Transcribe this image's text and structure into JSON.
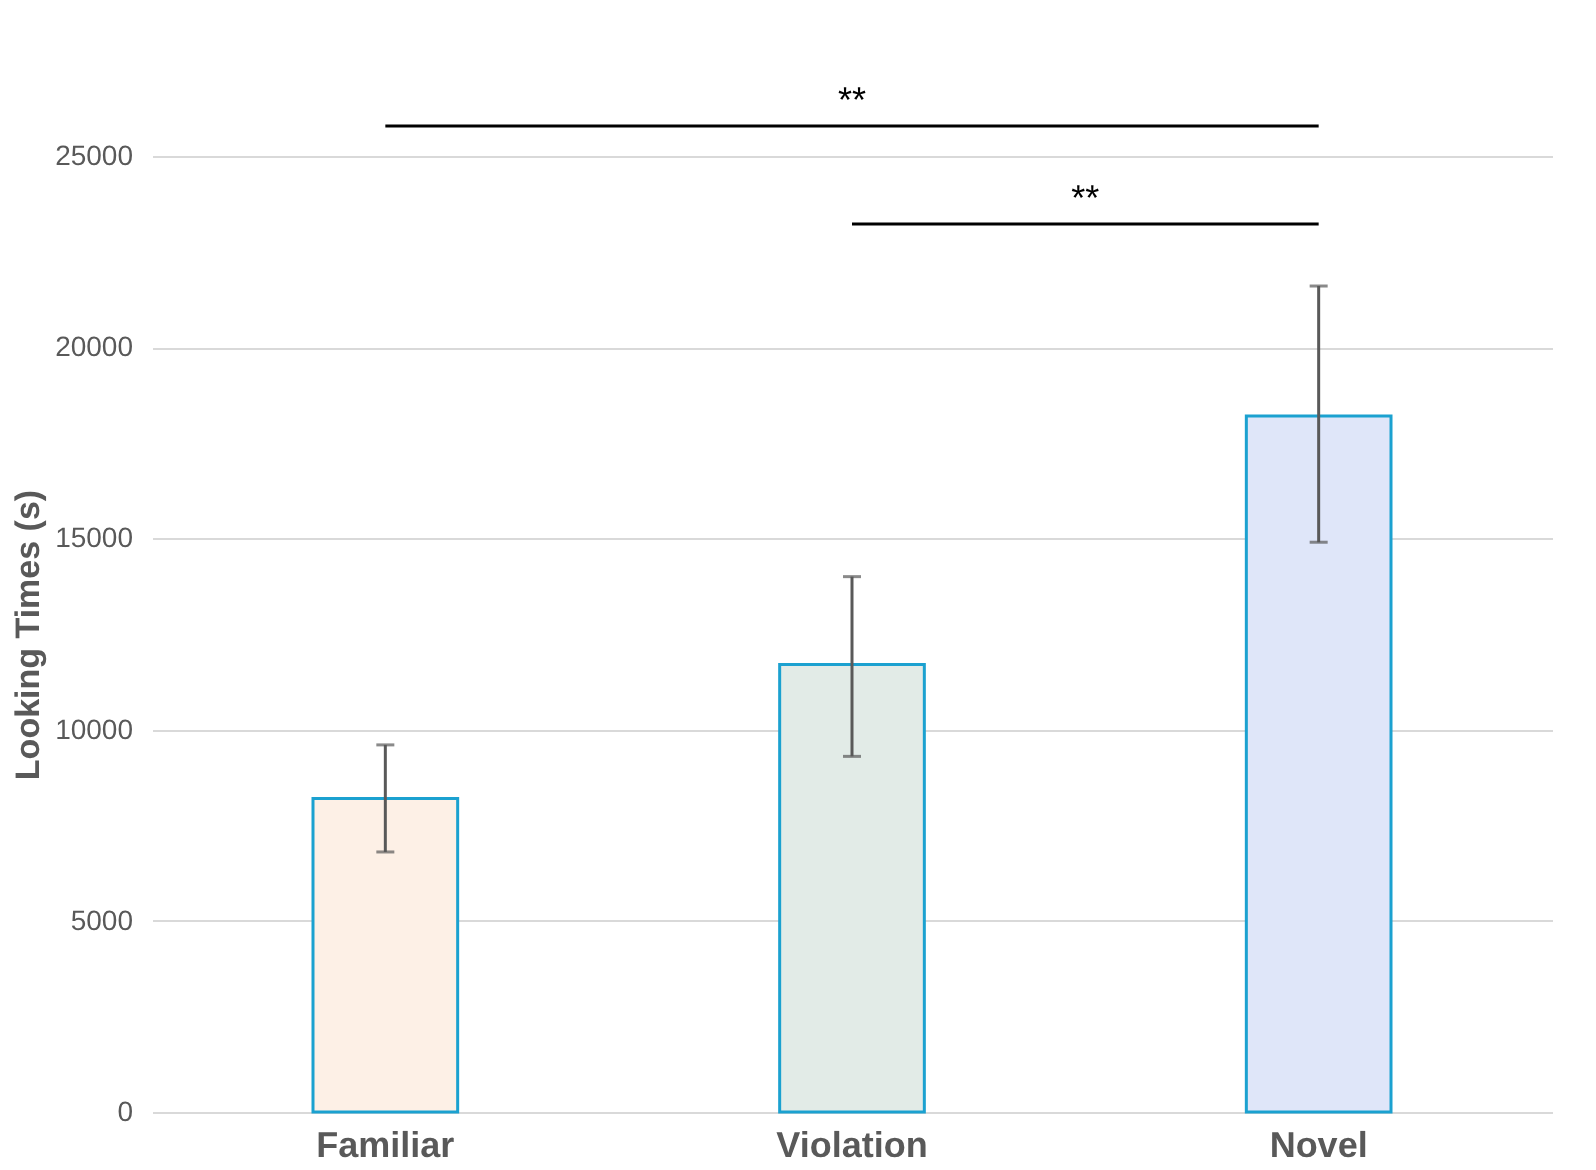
{
  "chart_data": {
    "type": "bar",
    "ylabel": "Looking Times (s)",
    "categories": [
      "Familiar",
      "Violation",
      "Novel"
    ],
    "values": [
      8200,
      11700,
      18200
    ],
    "colors": [
      "#fdf0e6",
      "#e2ebe7",
      "#dfe6f9"
    ],
    "errors": [
      [
        6800,
        9600
      ],
      [
        9300,
        14000
      ],
      [
        14900,
        21600
      ]
    ],
    "ylim": [
      0,
      25000
    ],
    "yticks": [
      0,
      5000,
      10000,
      15000,
      20000,
      25000
    ],
    "grid": "y",
    "legend": false,
    "annotations": [
      "**",
      "**"
    ]
  }
}
